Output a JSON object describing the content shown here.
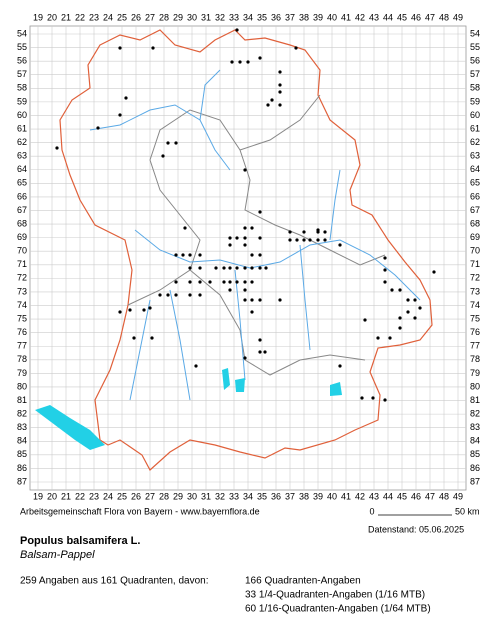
{
  "grid": {
    "columns": [
      19,
      20,
      21,
      22,
      23,
      24,
      25,
      26,
      27,
      28,
      29,
      30,
      31,
      32,
      33,
      34,
      35,
      36,
      37,
      38,
      39,
      40,
      41,
      42,
      43,
      44,
      45,
      46,
      47,
      48,
      49
    ],
    "rows": [
      54,
      55,
      56,
      57,
      58,
      59,
      60,
      61,
      62,
      63,
      64,
      65,
      66,
      67,
      68,
      69,
      70,
      71,
      72,
      73,
      74,
      75,
      76,
      77,
      78,
      79,
      80,
      81,
      82,
      83,
      84,
      85,
      86,
      87
    ]
  },
  "footer": {
    "credit": "Arbeitsgemeinschaft Flora von Bayern - www.bayernflora.de",
    "scale_start": "0",
    "scale_end": "50 km",
    "date": "Datenstand: 05.06.2025"
  },
  "species": {
    "name": "Populus balsamifera L.",
    "common_name": "Balsam-Pappel"
  },
  "stats": {
    "summary": "259 Angaben aus 161 Quadranten, davon:",
    "lines": [
      "166 Quadranten-Angaben",
      "33 1/4-Quadranten-Angaben (1/16 MTB)",
      "60 1/16-Quadranten-Angaben (1/64 MTB)"
    ]
  }
}
